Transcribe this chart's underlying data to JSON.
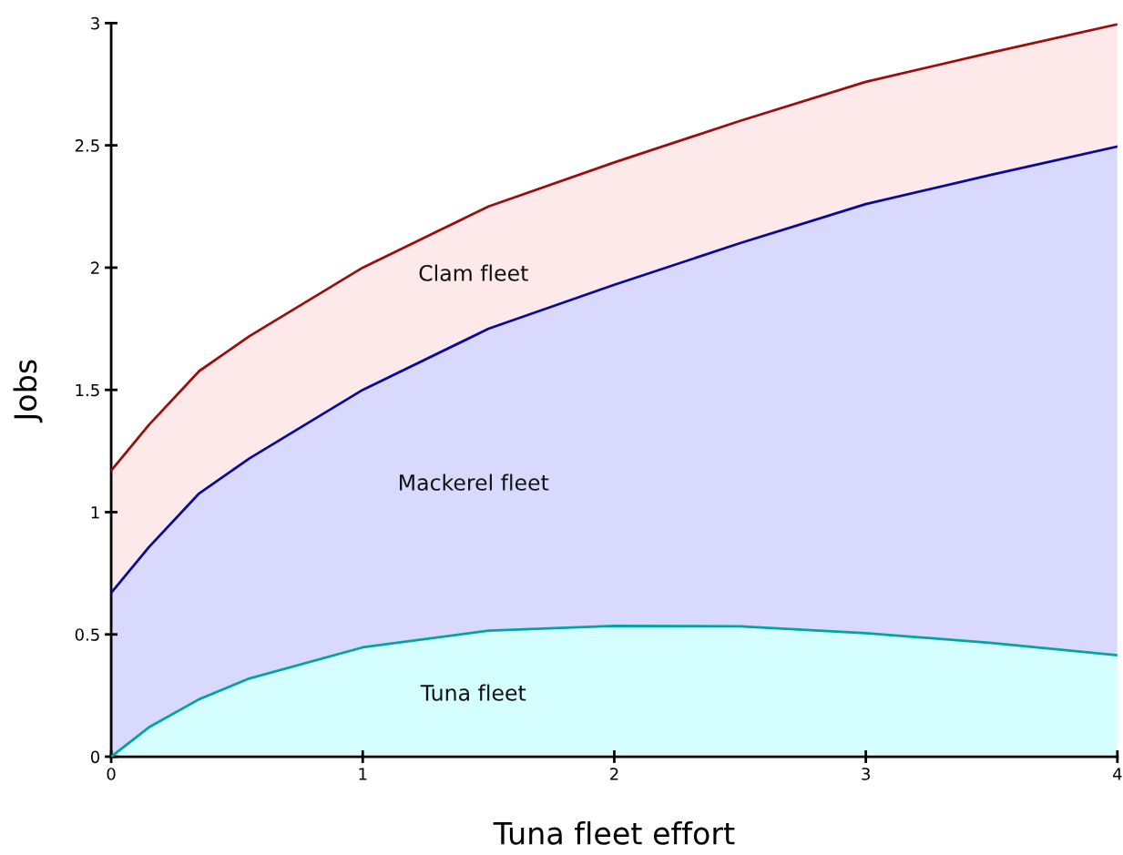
{
  "chart_data": {
    "type": "area",
    "stacked": true,
    "xlabel": "Tuna fleet effort",
    "ylabel": "Jobs",
    "x": [
      0,
      0.15,
      0.35,
      0.55,
      1,
      1.5,
      2,
      2.5,
      3,
      3.5,
      4
    ],
    "series": [
      {
        "name": "Tuna fleet",
        "color": "#d5ffff",
        "values": [
          0,
          0.12,
          0.235,
          0.32,
          0.447,
          0.515,
          0.535,
          0.533,
          0.505,
          0.465,
          0.415
        ]
      },
      {
        "name": "Mackerel fleet",
        "color": "#d9d9fd",
        "values": [
          0.67,
          0.737,
          0.842,
          0.9,
          1.053,
          1.235,
          1.395,
          1.567,
          1.755,
          1.915,
          2.08
        ]
      },
      {
        "name": "Clam fleet",
        "color": "#fde9e9",
        "values": [
          0.5,
          0.5,
          0.5,
          0.5,
          0.5,
          0.5,
          0.5,
          0.5,
          0.5,
          0.5,
          0.5
        ]
      }
    ],
    "xlim": [
      0,
      4
    ],
    "xticks": [
      0,
      1,
      2,
      3,
      4
    ],
    "ylim": [
      0,
      3
    ],
    "yticks": [
      0,
      0.5,
      1,
      1.5,
      2,
      2.5,
      3
    ],
    "grid": false,
    "legend": false
  }
}
